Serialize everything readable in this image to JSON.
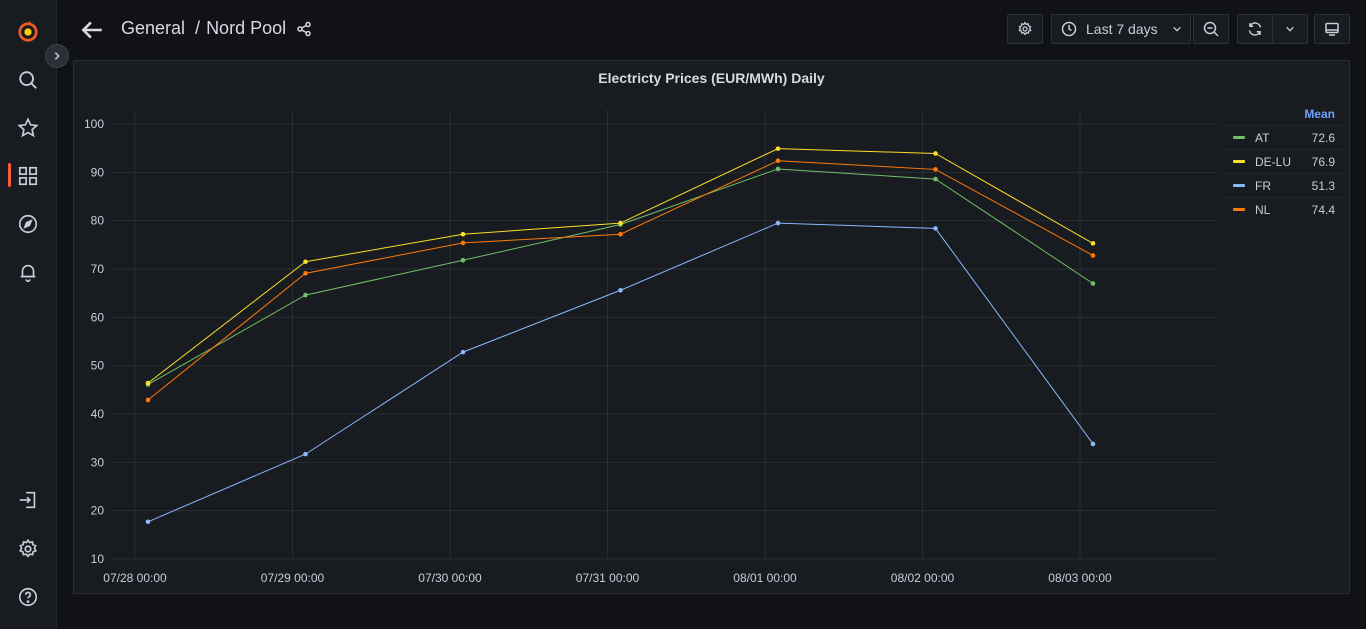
{
  "sidebar": {
    "items": [
      {
        "name": "grafana-logo-icon"
      },
      {
        "name": "search-icon"
      },
      {
        "name": "starred-icon"
      },
      {
        "name": "dashboards-icon"
      },
      {
        "name": "explore-icon"
      },
      {
        "name": "alerting-icon"
      },
      {
        "name": "sign-in-icon"
      },
      {
        "name": "configuration-icon"
      },
      {
        "name": "help-icon"
      }
    ]
  },
  "header": {
    "folder": "General",
    "separator": "/",
    "dashboard": "Nord Pool",
    "time_range": "Last 7 days"
  },
  "panel": {
    "title": "Electricty Prices (EUR/MWh) Daily"
  },
  "legend": {
    "header": "Mean",
    "items": [
      {
        "name": "AT",
        "mean": "72.6",
        "color": "#73bf69"
      },
      {
        "name": "DE-LU",
        "mean": "76.9",
        "color": "#fade2a"
      },
      {
        "name": "FR",
        "mean": "51.3",
        "color": "#8ab8ff"
      },
      {
        "name": "NL",
        "mean": "74.4",
        "color": "#ff780a"
      }
    ]
  },
  "chart_data": {
    "type": "line",
    "title": "Electricty Prices (EUR/MWh) Daily",
    "x": [
      "07/28 01:00",
      "07/29 01:00",
      "07/30 01:00",
      "07/31 01:00",
      "08/01 01:00",
      "08/02 01:00",
      "08/03 01:00"
    ],
    "x_ticks": [
      "07/28 00:00",
      "07/29 00:00",
      "07/30 00:00",
      "07/31 00:00",
      "08/01 00:00",
      "08/02 00:00",
      "08/03 00:00"
    ],
    "y_ticks": [
      10,
      20,
      30,
      40,
      50,
      60,
      70,
      80,
      90,
      100
    ],
    "ylim": [
      10,
      100
    ],
    "grid": true,
    "legend_position": "right",
    "series": [
      {
        "name": "AT",
        "color": "#73bf69",
        "values": [
          46.1,
          64.6,
          71.8,
          79.2,
          90.7,
          88.6,
          67.0
        ]
      },
      {
        "name": "DE-LU",
        "color": "#fade2a",
        "values": [
          46.4,
          71.5,
          77.2,
          79.5,
          94.9,
          93.9,
          75.3
        ]
      },
      {
        "name": "FR",
        "color": "#8ab8ff",
        "values": [
          17.7,
          31.7,
          52.8,
          65.6,
          79.5,
          78.4,
          33.8
        ]
      },
      {
        "name": "NL",
        "color": "#ff780a",
        "values": [
          42.9,
          69.1,
          75.4,
          77.2,
          92.4,
          90.6,
          72.8
        ]
      }
    ]
  }
}
